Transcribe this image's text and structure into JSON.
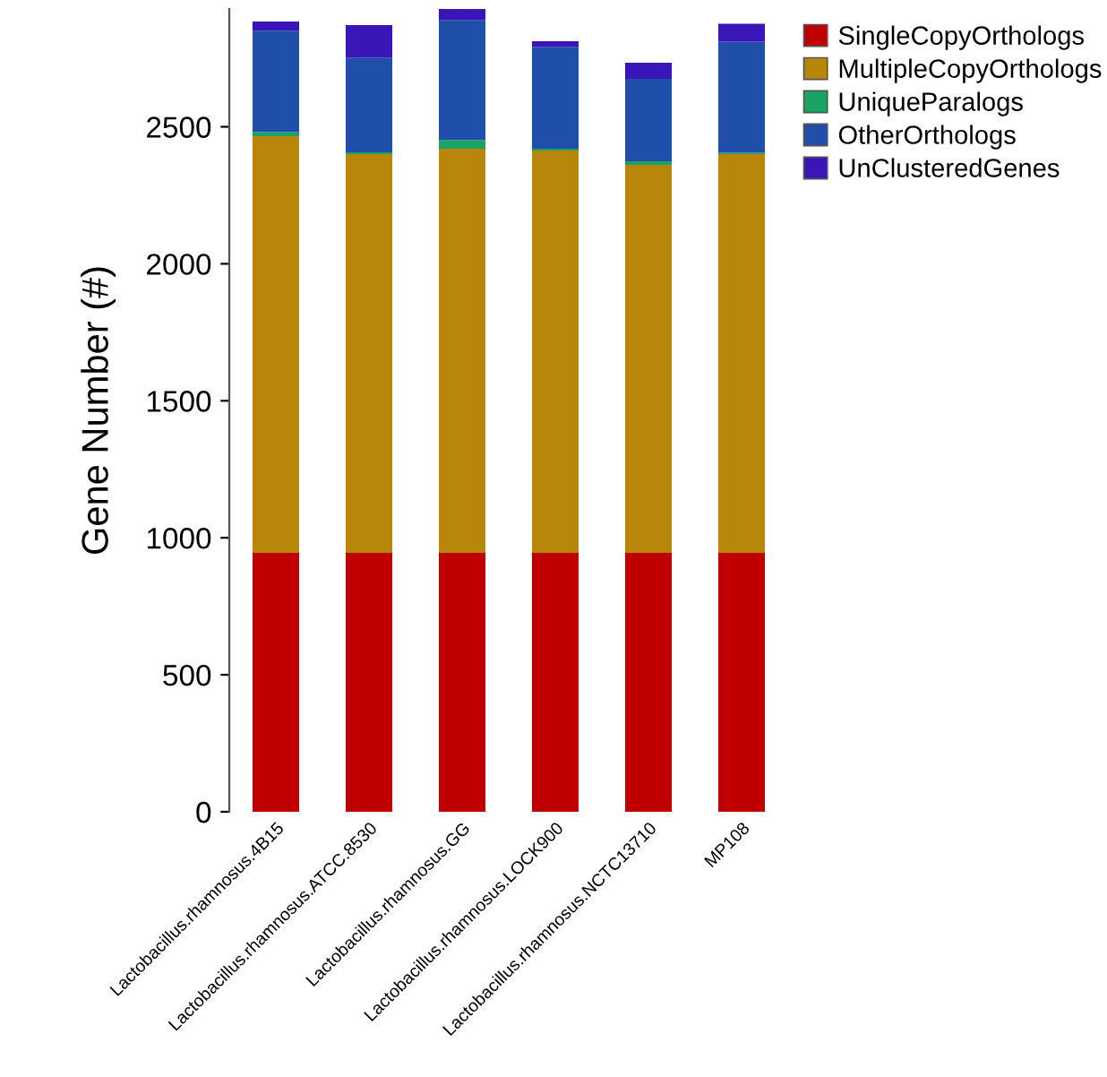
{
  "chart_data": {
    "type": "bar",
    "stacked": true,
    "ylabel": "Gene Number (#)",
    "categories": [
      "Lactobacillus.rhamnosus.4B15",
      "Lactobacillus.rhamnosus.ATCC.8530",
      "Lactobacillus.rhamnosus.GG",
      "Lactobacillus.rhamnosus.LOCK900",
      "Lactobacillus.rhamnosus.NCTC13710",
      "MP108"
    ],
    "series": [
      {
        "name": "SingleCopyOrthologs",
        "color": "#c00000",
        "values": [
          945,
          945,
          945,
          945,
          945,
          945
        ]
      },
      {
        "name": "MultipleCopyOrthologs",
        "color": "#b8860b",
        "values": [
          1521,
          1455,
          1475,
          1468,
          1416,
          1455
        ]
      },
      {
        "name": "UniqueParalogs",
        "color": "#1aa364",
        "values": [
          14,
          7,
          32,
          7,
          13,
          5
        ]
      },
      {
        "name": "OtherOrthologs",
        "color": "#1f4fa8",
        "values": [
          371,
          346,
          438,
          372,
          301,
          406
        ]
      },
      {
        "name": "UnClusteredGenes",
        "color": "#3a16b8",
        "values": [
          33,
          118,
          40,
          20,
          59,
          65
        ]
      }
    ],
    "ylim": [
      0,
      2930
    ],
    "yticks": [
      0,
      500,
      1000,
      1500,
      2000,
      2500
    ],
    "grid": false,
    "legend": "top right"
  }
}
